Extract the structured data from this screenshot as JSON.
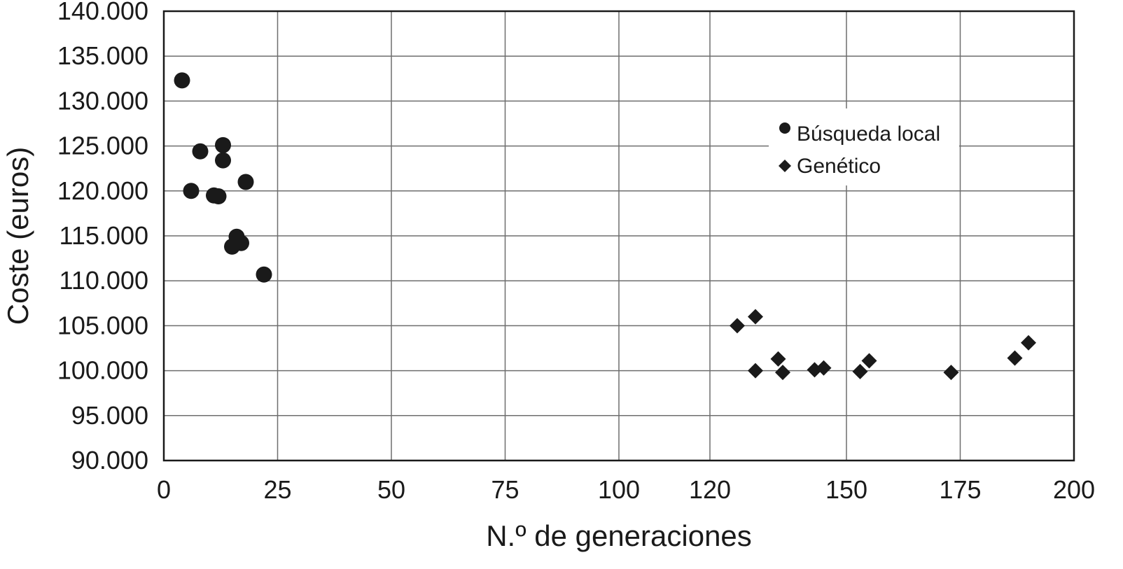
{
  "chart_data": {
    "type": "scatter",
    "xlabel": "N.º de generaciones",
    "ylabel": "Coste (euros)",
    "xlim": [
      0,
      200
    ],
    "ylim": [
      90000,
      140000
    ],
    "x_ticks": [
      0,
      25,
      50,
      75,
      100,
      120,
      150,
      175,
      200
    ],
    "x_tick_labels": [
      "0",
      "25",
      "50",
      "75",
      "100",
      "120",
      "150",
      "175",
      "200"
    ],
    "y_ticks": [
      90000,
      95000,
      100000,
      105000,
      110000,
      115000,
      120000,
      125000,
      130000,
      135000,
      140000
    ],
    "y_tick_labels": [
      "90.000",
      "95.000",
      "100.000",
      "105.000",
      "110.000",
      "115.000",
      "120.000",
      "125.000",
      "130.000",
      "135.000",
      "140.000"
    ],
    "grid": true,
    "legend_position": "upper-right",
    "series": [
      {
        "name": "Búsqueda local",
        "marker": "circle",
        "color": "#1a1a1a",
        "points": [
          {
            "x": 4,
            "y": 132300
          },
          {
            "x": 6,
            "y": 120000
          },
          {
            "x": 8,
            "y": 124400
          },
          {
            "x": 11,
            "y": 119500
          },
          {
            "x": 12,
            "y": 119400
          },
          {
            "x": 13,
            "y": 125100
          },
          {
            "x": 13,
            "y": 123400
          },
          {
            "x": 15,
            "y": 113800
          },
          {
            "x": 16,
            "y": 114900
          },
          {
            "x": 17,
            "y": 114200
          },
          {
            "x": 18,
            "y": 121000
          },
          {
            "x": 22,
            "y": 110700
          }
        ]
      },
      {
        "name": "Genético",
        "marker": "diamond",
        "color": "#1a1a1a",
        "points": [
          {
            "x": 126,
            "y": 105000
          },
          {
            "x": 130,
            "y": 106000
          },
          {
            "x": 130,
            "y": 100000
          },
          {
            "x": 135,
            "y": 101300
          },
          {
            "x": 136,
            "y": 99800
          },
          {
            "x": 143,
            "y": 100100
          },
          {
            "x": 145,
            "y": 100300
          },
          {
            "x": 153,
            "y": 99900
          },
          {
            "x": 155,
            "y": 101100
          },
          {
            "x": 173,
            "y": 99800
          },
          {
            "x": 187,
            "y": 101400
          },
          {
            "x": 190,
            "y": 103100
          }
        ]
      }
    ]
  }
}
